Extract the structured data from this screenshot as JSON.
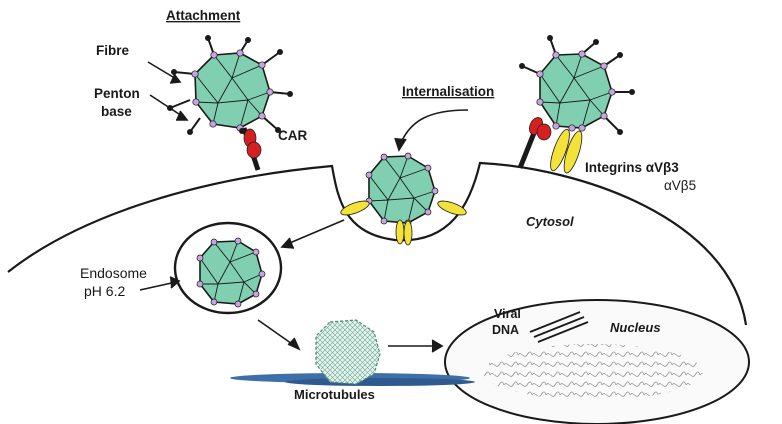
{
  "labels": {
    "attachment": "Attachment",
    "fibre": "Fibre",
    "penton_base_line1": "Penton",
    "penton_base_line2": "base",
    "car": "CAR",
    "internalisation": "Internalisation",
    "integrins": "Integrins αVβ3",
    "integrins_line2": "αVβ5",
    "cytosol": "Cytosol",
    "endosome_line1": "Endosome",
    "endosome_line2": "pH 6.2",
    "viral_line1": "Viral",
    "viral_line2": "DNA",
    "nucleus": "Nucleus",
    "microtubules": "Microtubules"
  },
  "colors": {
    "capsid_fill": "#7fcfb0",
    "vertex": "#c9a3e0",
    "car_red": "#d42020",
    "integrin_yellow": "#f2e23a",
    "microtubule_blue": "#3f6fa8",
    "outline": "#1a1a1a"
  }
}
